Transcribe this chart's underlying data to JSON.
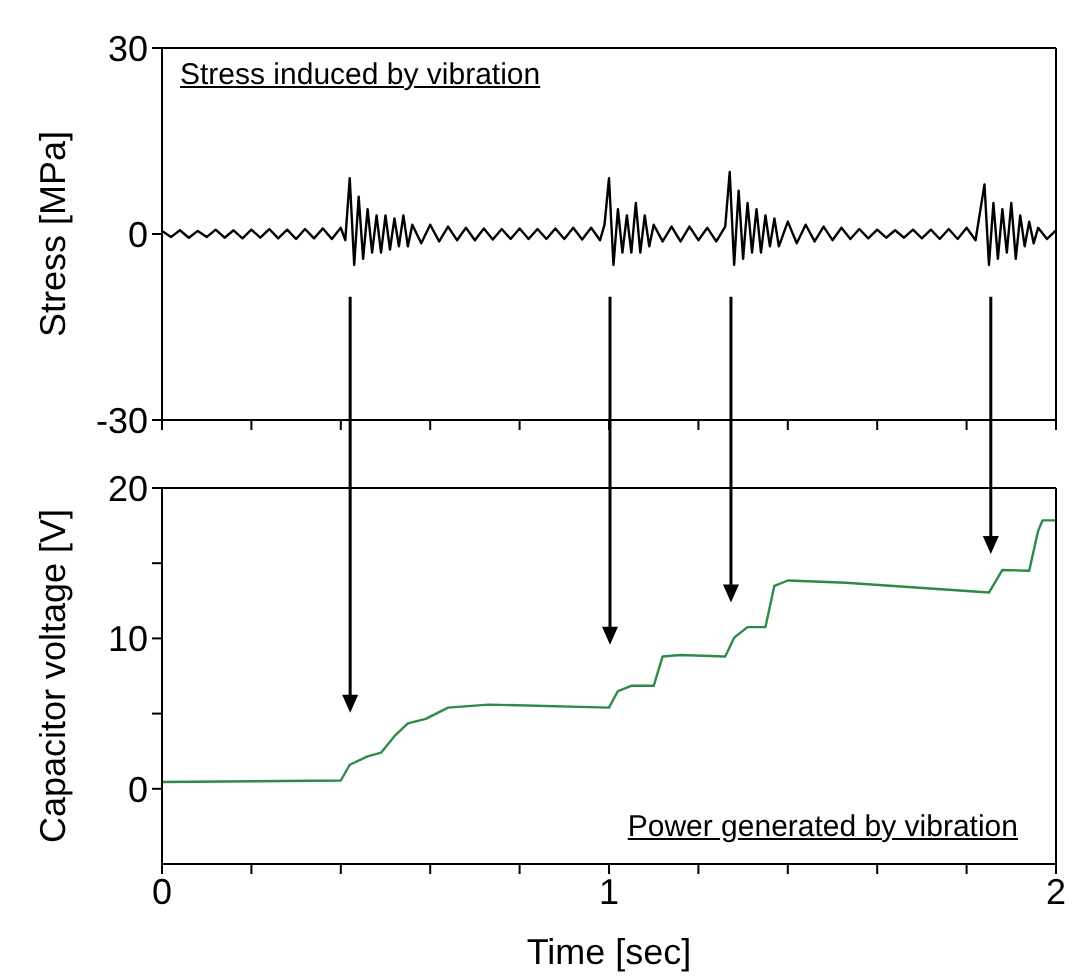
{
  "chart_data": [
    {
      "type": "line",
      "ylabel": "Stress [MPa]",
      "annotations": [
        "Stress induced by vibration"
      ],
      "xlim": [
        0,
        2
      ],
      "xticks": [
        0,
        {
          "value": 0.2,
          "label": null
        },
        {
          "value": 0.4,
          "label": null
        },
        {
          "value": 0.6,
          "label": null
        },
        {
          "value": 0.8,
          "label": null
        },
        1,
        {
          "value": 1.2,
          "label": null
        },
        {
          "value": 1.4,
          "label": null
        },
        {
          "value": 1.6,
          "label": null
        },
        {
          "value": 1.8,
          "label": null
        },
        2
      ],
      "ylim": [
        -30,
        30
      ],
      "yticks": [
        -30,
        0,
        30
      ],
      "tick_labels": "y",
      "grid": false,
      "legend": false,
      "marker": "none",
      "line_style": "solid",
      "series": [
        {
          "color": "#000000",
          "x": [
            0,
            0.02,
            0.04,
            0.06,
            0.08,
            0.1,
            0.12,
            0.14,
            0.16,
            0.18,
            0.2,
            0.22,
            0.24,
            0.26,
            0.28,
            0.3,
            0.32,
            0.34,
            0.36,
            0.38,
            0.4,
            0.41,
            0.42,
            0.43,
            0.44,
            0.45,
            0.46,
            0.47,
            0.48,
            0.49,
            0.5,
            0.51,
            0.52,
            0.53,
            0.54,
            0.55,
            0.56,
            0.58,
            0.6,
            0.62,
            0.64,
            0.66,
            0.68,
            0.7,
            0.72,
            0.74,
            0.76,
            0.78,
            0.8,
            0.82,
            0.84,
            0.86,
            0.88,
            0.9,
            0.92,
            0.94,
            0.96,
            0.98,
            0.99,
            1.0,
            1.01,
            1.02,
            1.03,
            1.04,
            1.05,
            1.06,
            1.07,
            1.08,
            1.09,
            1.1,
            1.12,
            1.14,
            1.16,
            1.18,
            1.2,
            1.22,
            1.24,
            1.26,
            1.27,
            1.28,
            1.29,
            1.3,
            1.31,
            1.32,
            1.33,
            1.34,
            1.35,
            1.36,
            1.37,
            1.38,
            1.4,
            1.42,
            1.44,
            1.46,
            1.48,
            1.5,
            1.52,
            1.54,
            1.56,
            1.58,
            1.6,
            1.62,
            1.64,
            1.66,
            1.68,
            1.7,
            1.72,
            1.74,
            1.76,
            1.78,
            1.8,
            1.82,
            1.84,
            1.85,
            1.86,
            1.87,
            1.88,
            1.89,
            1.9,
            1.91,
            1.92,
            1.93,
            1.94,
            1.95,
            1.96,
            1.98,
            2.0
          ],
          "values": [
            0.5,
            -0.5,
            0.6,
            -0.6,
            0.5,
            -0.5,
            0.7,
            -0.6,
            0.6,
            -0.7,
            0.7,
            -0.6,
            0.8,
            -0.7,
            0.7,
            -0.8,
            0.8,
            -0.7,
            0.9,
            -0.8,
            1,
            -1,
            9,
            -5,
            6,
            -4,
            4,
            -3,
            3,
            -3,
            3,
            -2.5,
            2.5,
            -2,
            3,
            -2,
            1.5,
            -1.5,
            1.5,
            -1.2,
            1.2,
            -1,
            1,
            -1,
            0.9,
            -0.9,
            0.8,
            -0.8,
            0.9,
            -0.8,
            0.8,
            -0.8,
            0.9,
            -0.8,
            1,
            -0.9,
            1,
            -1,
            1.5,
            9,
            -5,
            4,
            -3,
            3,
            -3,
            5,
            -3,
            3,
            -2,
            1.5,
            -1.2,
            1.2,
            -1.2,
            1.2,
            -1,
            1,
            -1.2,
            1.2,
            10,
            -5,
            7,
            -4,
            5,
            -3,
            4,
            -3,
            3,
            -2,
            2.5,
            -2,
            2,
            -1.5,
            1.5,
            -1.2,
            1.2,
            -1,
            1,
            -0.8,
            0.8,
            -0.7,
            0.7,
            -0.6,
            0.6,
            -0.6,
            0.7,
            -0.7,
            0.7,
            -0.8,
            0.8,
            -0.8,
            1,
            -1,
            8,
            -5,
            5,
            -4,
            4,
            -3,
            5,
            -4,
            3,
            -2,
            2,
            -1.5,
            1,
            -0.8,
            0.6
          ]
        }
      ]
    },
    {
      "type": "line",
      "xlabel": "Time [sec]",
      "ylabel": "Capacitor voltage [V]",
      "annotations": [
        "Power generated by vibration"
      ],
      "xlim": [
        0,
        2
      ],
      "xticks": [
        0,
        {
          "value": 0.2,
          "label": null
        },
        {
          "value": 0.4,
          "label": null
        },
        {
          "value": 0.6,
          "label": null
        },
        {
          "value": 0.8,
          "label": null
        },
        1,
        {
          "value": 1.2,
          "label": null
        },
        {
          "value": 1.4,
          "label": null
        },
        {
          "value": 1.6,
          "label": null
        },
        {
          "value": 1.8,
          "label": null
        },
        2
      ],
      "ylim": [
        -5,
        20
      ],
      "yticks": [
        0,
        {
          "value": 5,
          "label": null
        },
        10,
        {
          "value": 15,
          "label": null
        },
        20
      ],
      "grid": false,
      "legend": false,
      "marker": "none",
      "line_style": "solid",
      "series": [
        {
          "color": "#2e8b47",
          "x": [
            0,
            0.4,
            0.42,
            0.46,
            0.49,
            0.52,
            0.55,
            0.59,
            0.64,
            0.73,
            1.0,
            1.02,
            1.05,
            1.1,
            1.12,
            1.16,
            1.26,
            1.28,
            1.31,
            1.35,
            1.37,
            1.4,
            1.53,
            1.85,
            1.88,
            1.94,
            1.96,
            1.97,
            2.0
          ],
          "values": [
            0.45,
            0.55,
            1.6,
            2.15,
            2.4,
            3.5,
            4.35,
            4.65,
            5.4,
            5.6,
            5.4,
            6.5,
            6.85,
            6.85,
            8.8,
            8.9,
            8.8,
            10.05,
            10.75,
            10.75,
            13.5,
            13.85,
            13.7,
            13.05,
            14.55,
            14.5,
            17.15,
            17.85,
            17.85
          ]
        }
      ]
    }
  ]
}
